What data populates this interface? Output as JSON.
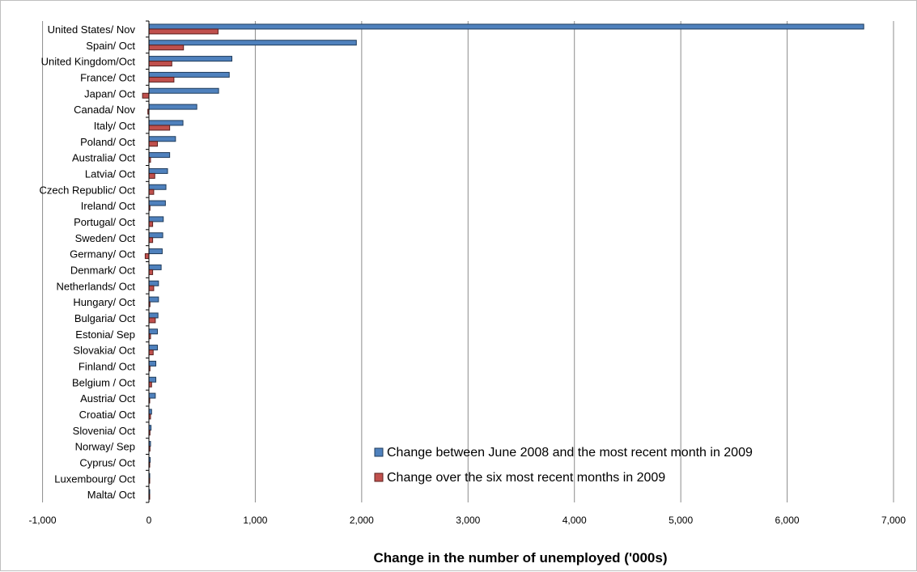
{
  "chart_data": {
    "type": "bar",
    "orientation": "horizontal",
    "categories": [
      "United States/ Nov",
      "Spain/ Oct",
      "United Kingdom/Oct",
      "France/ Oct",
      "Japan/ Oct",
      "Canada/ Nov",
      "Italy/ Oct",
      "Poland/ Oct",
      "Australia/ Oct",
      "Latvia/ Oct",
      "Czech Republic/ Oct",
      "Ireland/ Oct",
      "Portugal/ Oct",
      "Sweden/ Oct",
      "Germany/ Oct",
      "Denmark/ Oct",
      "Netherlands/ Oct",
      "Hungary/ Oct",
      "Bulgaria/ Oct",
      "Estonia/ Sep",
      "Slovakia/ Oct",
      "Finland/ Oct",
      "Belgium / Oct",
      "Austria/ Oct",
      "Croatia/ Oct",
      "Slovenia/ Oct",
      "Norway/ Sep",
      "Cyprus/ Oct",
      "Luxembourg/ Oct",
      "Malta/ Oct"
    ],
    "series": [
      {
        "name": "Change between June 2008 and the most recent month in 2009",
        "color": "#4f81bd",
        "values": [
          6720,
          1950,
          780,
          755,
          655,
          450,
          320,
          250,
          195,
          175,
          160,
          155,
          135,
          130,
          125,
          115,
          90,
          90,
          85,
          80,
          80,
          65,
          65,
          60,
          25,
          20,
          15,
          12,
          8,
          5
        ]
      },
      {
        "name": "Change over the six most recent months in 2009",
        "color": "#c0504d",
        "values": [
          650,
          325,
          215,
          235,
          -60,
          -10,
          195,
          80,
          15,
          55,
          45,
          10,
          35,
          35,
          -35,
          35,
          45,
          10,
          60,
          15,
          40,
          10,
          25,
          5,
          15,
          10,
          10,
          5,
          5,
          3
        ]
      }
    ],
    "xlim": [
      -1000,
      7000
    ],
    "xticks": [
      -1000,
      0,
      1000,
      2000,
      3000,
      4000,
      5000,
      6000,
      7000
    ],
    "xtick_labels": [
      "-1,000",
      "0",
      "1,000",
      "2,000",
      "3,000",
      "4,000",
      "5,000",
      "6,000",
      "7,000"
    ],
    "xlabel": "Change in the number of unemployed ('000s)",
    "ylabel": "",
    "grid": "vertical",
    "legend_position": "bottom-right"
  }
}
